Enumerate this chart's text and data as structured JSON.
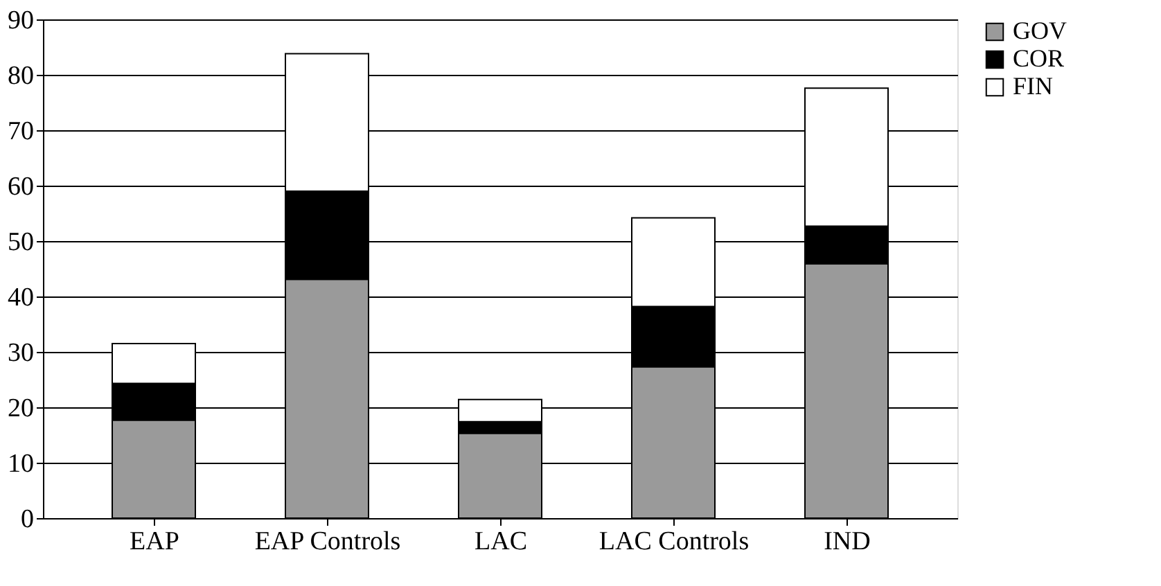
{
  "chart_data": {
    "type": "bar",
    "stacked": true,
    "categories": [
      "EAP",
      "EAP Controls",
      "LAC",
      "LAC Controls",
      "IND"
    ],
    "series": [
      {
        "name": "GOV",
        "color": "#9a9a9a",
        "values": [
          17.7,
          43.1,
          15.3,
          27.3,
          45.9
        ]
      },
      {
        "name": "COR",
        "color": "#000000",
        "values": [
          6.6,
          15.9,
          2.1,
          10.9,
          6.8
        ]
      },
      {
        "name": "FIN",
        "color": "#ffffff",
        "values": [
          7.2,
          24.8,
          4.0,
          16.0,
          24.9
        ]
      }
    ],
    "ylim": [
      0,
      90
    ],
    "yticks": [
      0,
      10,
      20,
      30,
      40,
      50,
      60,
      70,
      80,
      90
    ],
    "grid": "y",
    "legend": "right"
  }
}
